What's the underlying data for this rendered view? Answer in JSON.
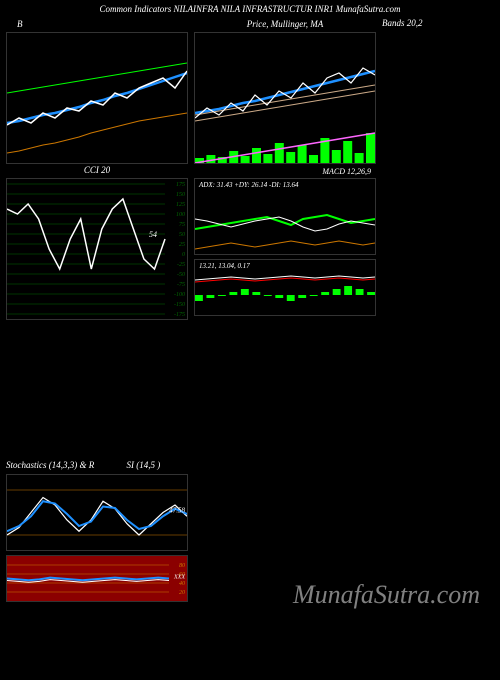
{
  "header": "Common Indicators NILAINFRA NILA INFRASTRUCTUR INR1 MunafaSutra.com",
  "watermark": "MunafaSutra.com",
  "panels": {
    "bollinger": {
      "title": "B",
      "title_right": "Bands 20,2",
      "upper": [
        60,
        58,
        56,
        54,
        52,
        50,
        48,
        46,
        44,
        42,
        40,
        38,
        36,
        34,
        32,
        30
      ],
      "middle_blue": [
        90,
        88,
        85,
        82,
        80,
        77,
        74,
        70,
        67,
        63,
        60,
        56,
        52,
        48,
        44,
        40
      ],
      "middle_white": [
        92,
        85,
        90,
        80,
        85,
        75,
        78,
        68,
        72,
        60,
        65,
        55,
        50,
        45,
        55,
        38
      ],
      "lower": [
        120,
        118,
        115,
        112,
        110,
        107,
        104,
        100,
        97,
        94,
        91,
        88,
        86,
        84,
        82,
        80
      ],
      "upper_color": "#00ff00",
      "blue_color": "#1e90ff",
      "white_color": "#ffffff",
      "lower_color": "#cc7700"
    },
    "price_ma": {
      "title": "Price, Mullinger, MA",
      "blue": [
        80,
        78,
        76,
        73,
        70,
        68,
        65,
        62,
        59,
        56,
        53,
        50,
        47,
        44,
        41,
        38
      ],
      "white": [
        85,
        75,
        82,
        70,
        78,
        62,
        72,
        58,
        65,
        50,
        60,
        45,
        40,
        50,
        35,
        42
      ],
      "tan1": [
        82,
        80,
        78,
        76,
        74,
        72,
        70,
        68,
        66,
        64,
        62,
        60,
        58,
        56,
        54,
        52
      ],
      "tan2": [
        88,
        86,
        84,
        82,
        80,
        78,
        76,
        74,
        72,
        70,
        68,
        66,
        64,
        62,
        60,
        58
      ],
      "volume": [
        5,
        8,
        6,
        12,
        7,
        15,
        9,
        20,
        11,
        18,
        8,
        25,
        13,
        22,
        10,
        30
      ],
      "pink": [
        130,
        128,
        126,
        124,
        122,
        120,
        118,
        116,
        114,
        112,
        110,
        108,
        106,
        104,
        102,
        100
      ],
      "vol_color": "#00ff00",
      "pink_color": "#ff66ff"
    },
    "cci": {
      "title": "CCI 20",
      "label": "54",
      "line": [
        30,
        35,
        25,
        40,
        70,
        90,
        60,
        40,
        90,
        50,
        30,
        20,
        50,
        80,
        90,
        60
      ],
      "ticks": [
        175,
        150,
        125,
        100,
        75,
        50,
        25,
        0,
        -25,
        -50,
        -75,
        -100,
        -150,
        -175
      ],
      "line_color": "#ffffff",
      "grid_color": "#006600",
      "tick_color": "#006600"
    },
    "adx": {
      "label": "ADX: 31.43 +DY: 26.14  -DI: 13.64",
      "adx": [
        40,
        42,
        45,
        48,
        45,
        42,
        40,
        38,
        42,
        48,
        52,
        50,
        45,
        42,
        44,
        46
      ],
      "pdi": [
        50,
        48,
        46,
        44,
        42,
        40,
        38,
        42,
        46,
        40,
        38,
        36,
        40,
        44,
        42,
        40
      ],
      "ndi": [
        70,
        68,
        66,
        64,
        66,
        68,
        66,
        64,
        62,
        64,
        66,
        64,
        62,
        64,
        66,
        64
      ],
      "pdi_color": "#00ff00",
      "adx_color": "#ffffff",
      "ndi_color": "#cc7700"
    },
    "macd": {
      "title_extra": "MACD 12,26,9",
      "label": "13.21, 13.04, 0.17",
      "hist": [
        -2,
        -1,
        0,
        1,
        2,
        1,
        0,
        -1,
        -2,
        -1,
        0,
        1,
        2,
        3,
        2,
        1
      ],
      "line1": [
        20,
        19,
        18,
        17,
        18,
        19,
        18,
        17,
        16,
        17,
        18,
        17,
        16,
        17,
        18,
        17
      ],
      "line2": [
        22,
        21,
        20,
        19,
        20,
        21,
        20,
        19,
        18,
        19,
        20,
        19,
        18,
        19,
        20,
        19
      ],
      "hist_color": "#00ff00",
      "line1_color": "#ffffff",
      "line2_color": "#ff0000"
    },
    "stoch": {
      "title": "Stochastics               (14,3,3) & R",
      "title2": "SI                  (14,5                    )",
      "k": [
        20,
        30,
        50,
        70,
        60,
        40,
        25,
        40,
        65,
        55,
        35,
        20,
        35,
        50,
        60,
        45
      ],
      "d": [
        25,
        32,
        45,
        65,
        62,
        48,
        32,
        38,
        58,
        56,
        40,
        28,
        32,
        45,
        55,
        48
      ],
      "bands": [
        20,
        80
      ],
      "k_color": "#ffffff",
      "d_color": "#1e90ff",
      "band_color": "#cc7700",
      "label": "47.58"
    },
    "rsi": {
      "line": [
        50,
        48,
        46,
        48,
        52,
        50,
        48,
        46,
        48,
        50,
        52,
        50,
        48,
        50,
        52,
        50
      ],
      "ticks": [
        80,
        60,
        40,
        20
      ],
      "line_color": "#1e90ff",
      "bg_color": "#8b0000",
      "tick_color": "#cc7700",
      "label": "XXX"
    }
  }
}
